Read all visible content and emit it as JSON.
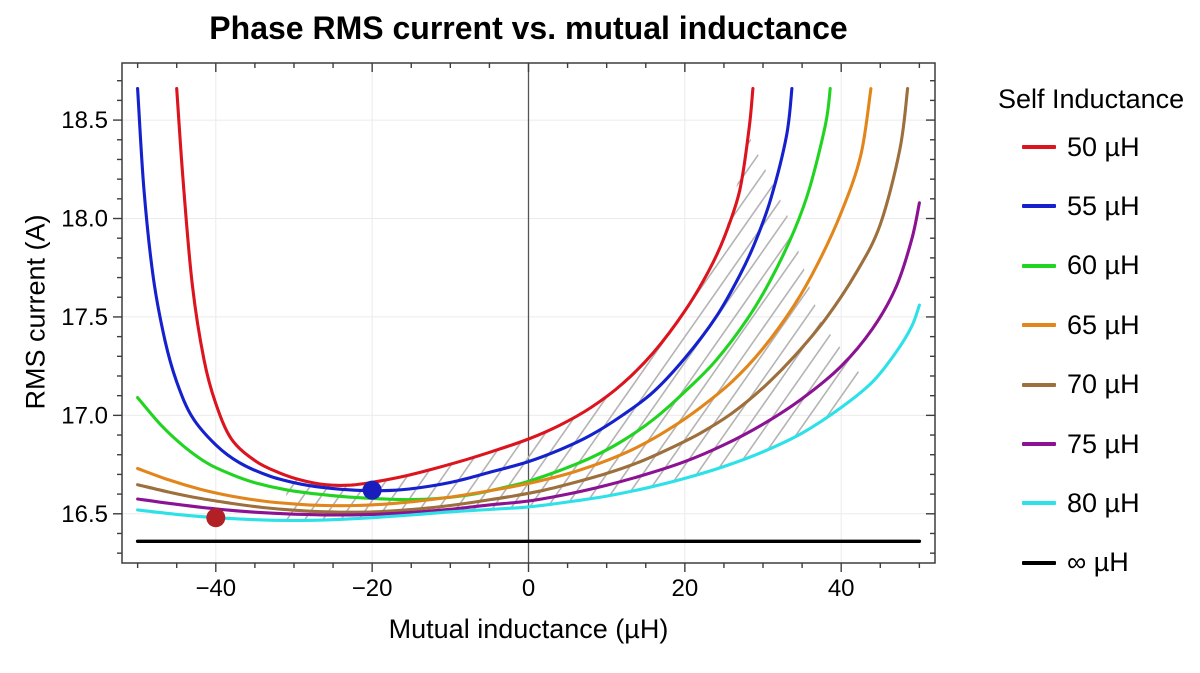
{
  "title": "Phase RMS current vs. mutual inductance",
  "chart_data": {
    "type": "line",
    "title": "Phase RMS current vs. mutual inductance",
    "xlabel": "Mutual inductance (µH)",
    "ylabel": "RMS current (A)",
    "xlim": [
      -52,
      52
    ],
    "ylim": [
      16.25,
      18.79
    ],
    "x_ticks": [
      -40,
      -20,
      0,
      20,
      40
    ],
    "y_ticks": [
      16.5,
      17.0,
      17.5,
      18.0,
      18.5
    ],
    "x_minor_step": 5,
    "y_minor_step": 0.1,
    "grid": true,
    "grid_color": "#ebebeb",
    "zero_axis_color": "#555555",
    "frame_color": "#3d3d3d",
    "legend_title": "Self Inductance",
    "legend_position": "right",
    "series": [
      {
        "name": "50 µH",
        "color": "#dc141e",
        "points": [
          [
            -45,
            18.66
          ],
          [
            -44.2,
            18.2
          ],
          [
            -43,
            17.66
          ],
          [
            -41.5,
            17.28
          ],
          [
            -40,
            17.06
          ],
          [
            -38,
            16.88
          ],
          [
            -35,
            16.77
          ],
          [
            -32,
            16.71
          ],
          [
            -29,
            16.67
          ],
          [
            -26,
            16.648
          ],
          [
            -23,
            16.645
          ],
          [
            -20,
            16.66
          ],
          [
            -16,
            16.69
          ],
          [
            -12,
            16.73
          ],
          [
            -8,
            16.775
          ],
          [
            -4,
            16.825
          ],
          [
            0,
            16.88
          ],
          [
            4,
            16.95
          ],
          [
            8,
            17.04
          ],
          [
            12,
            17.16
          ],
          [
            16,
            17.32
          ],
          [
            20,
            17.53
          ],
          [
            23,
            17.73
          ],
          [
            25,
            17.9
          ],
          [
            27,
            18.14
          ],
          [
            28.2,
            18.45
          ],
          [
            28.7,
            18.66
          ]
        ]
      },
      {
        "name": "55 µH",
        "color": "#1421cd",
        "points": [
          [
            -50,
            18.66
          ],
          [
            -49.2,
            18.15
          ],
          [
            -48,
            17.7
          ],
          [
            -46.5,
            17.38
          ],
          [
            -45,
            17.17
          ],
          [
            -43,
            16.99
          ],
          [
            -40,
            16.85
          ],
          [
            -37,
            16.76
          ],
          [
            -33,
            16.69
          ],
          [
            -29,
            16.65
          ],
          [
            -25,
            16.628
          ],
          [
            -21,
            16.618
          ],
          [
            -17,
            16.62
          ],
          [
            -13,
            16.638
          ],
          [
            -9,
            16.668
          ],
          [
            -5,
            16.71
          ],
          [
            0,
            16.765
          ],
          [
            4,
            16.825
          ],
          [
            8,
            16.9
          ],
          [
            12,
            17.0
          ],
          [
            16,
            17.12
          ],
          [
            20,
            17.29
          ],
          [
            24,
            17.5
          ],
          [
            27,
            17.71
          ],
          [
            29,
            17.88
          ],
          [
            31,
            18.1
          ],
          [
            33,
            18.42
          ],
          [
            33.7,
            18.66
          ]
        ]
      },
      {
        "name": "60 µH",
        "color": "#22d422",
        "points": [
          [
            -50,
            17.09
          ],
          [
            -47,
            16.95
          ],
          [
            -44,
            16.84
          ],
          [
            -41,
            16.755
          ],
          [
            -38,
            16.7
          ],
          [
            -35,
            16.658
          ],
          [
            -31,
            16.622
          ],
          [
            -27,
            16.6
          ],
          [
            -23,
            16.585
          ],
          [
            -19,
            16.576
          ],
          [
            -15,
            16.572
          ],
          [
            -11,
            16.58
          ],
          [
            -7,
            16.6
          ],
          [
            -3,
            16.635
          ],
          [
            0,
            16.665
          ],
          [
            4,
            16.72
          ],
          [
            8,
            16.785
          ],
          [
            12,
            16.87
          ],
          [
            16,
            16.98
          ],
          [
            20,
            17.12
          ],
          [
            24,
            17.28
          ],
          [
            28,
            17.49
          ],
          [
            31,
            17.69
          ],
          [
            34,
            17.94
          ],
          [
            36,
            18.16
          ],
          [
            38,
            18.48
          ],
          [
            38.6,
            18.66
          ]
        ]
      },
      {
        "name": "65 µH",
        "color": "#e2861b",
        "points": [
          [
            -50,
            16.73
          ],
          [
            -46,
            16.672
          ],
          [
            -42,
            16.625
          ],
          [
            -38,
            16.59
          ],
          [
            -34,
            16.565
          ],
          [
            -30,
            16.55
          ],
          [
            -26,
            16.542
          ],
          [
            -22,
            16.542
          ],
          [
            -18,
            16.55
          ],
          [
            -14,
            16.565
          ],
          [
            -10,
            16.585
          ],
          [
            -6,
            16.61
          ],
          [
            -2,
            16.638
          ],
          [
            2,
            16.672
          ],
          [
            6,
            16.715
          ],
          [
            10,
            16.77
          ],
          [
            14,
            16.84
          ],
          [
            18,
            16.93
          ],
          [
            22,
            17.04
          ],
          [
            26,
            17.17
          ],
          [
            30,
            17.34
          ],
          [
            34,
            17.56
          ],
          [
            37,
            17.77
          ],
          [
            40,
            18.03
          ],
          [
            42.5,
            18.32
          ],
          [
            43.8,
            18.66
          ]
        ]
      },
      {
        "name": "70 µH",
        "color": "#9c6f3c",
        "points": [
          [
            -50,
            16.648
          ],
          [
            -46,
            16.61
          ],
          [
            -42,
            16.578
          ],
          [
            -38,
            16.553
          ],
          [
            -34,
            16.532
          ],
          [
            -30,
            16.518
          ],
          [
            -26,
            16.51
          ],
          [
            -22,
            16.508
          ],
          [
            -18,
            16.513
          ],
          [
            -14,
            16.525
          ],
          [
            -10,
            16.542
          ],
          [
            -6,
            16.565
          ],
          [
            -2,
            16.59
          ],
          [
            2,
            16.62
          ],
          [
            6,
            16.66
          ],
          [
            10,
            16.705
          ],
          [
            14,
            16.76
          ],
          [
            18,
            16.83
          ],
          [
            22,
            16.91
          ],
          [
            26,
            17.01
          ],
          [
            30,
            17.14
          ],
          [
            34,
            17.3
          ],
          [
            38,
            17.49
          ],
          [
            42,
            17.73
          ],
          [
            45,
            17.97
          ],
          [
            47.5,
            18.35
          ],
          [
            48.5,
            18.66
          ]
        ]
      },
      {
        "name": "75 µH",
        "color": "#8b1292",
        "points": [
          [
            -50,
            16.575
          ],
          [
            -45,
            16.548
          ],
          [
            -40,
            16.525
          ],
          [
            -35,
            16.508
          ],
          [
            -30,
            16.498
          ],
          [
            -25,
            16.494
          ],
          [
            -20,
            16.497
          ],
          [
            -15,
            16.507
          ],
          [
            -10,
            16.523
          ],
          [
            -5,
            16.545
          ],
          [
            0,
            16.565
          ],
          [
            5,
            16.6
          ],
          [
            10,
            16.645
          ],
          [
            15,
            16.7
          ],
          [
            20,
            16.765
          ],
          [
            25,
            16.85
          ],
          [
            30,
            16.955
          ],
          [
            35,
            17.085
          ],
          [
            40,
            17.25
          ],
          [
            44,
            17.44
          ],
          [
            47,
            17.65
          ],
          [
            49,
            17.89
          ],
          [
            50,
            18.08
          ]
        ]
      },
      {
        "name": "80 µH",
        "color": "#2ce1e8",
        "points": [
          [
            -50,
            16.52
          ],
          [
            -45,
            16.497
          ],
          [
            -40,
            16.48
          ],
          [
            -35,
            16.47
          ],
          [
            -30,
            16.466
          ],
          [
            -25,
            16.47
          ],
          [
            -20,
            16.48
          ],
          [
            -15,
            16.494
          ],
          [
            -10,
            16.51
          ],
          [
            -5,
            16.522
          ],
          [
            0,
            16.535
          ],
          [
            5,
            16.56
          ],
          [
            10,
            16.59
          ],
          [
            15,
            16.63
          ],
          [
            20,
            16.68
          ],
          [
            25,
            16.74
          ],
          [
            30,
            16.815
          ],
          [
            35,
            16.91
          ],
          [
            40,
            17.04
          ],
          [
            44,
            17.17
          ],
          [
            47,
            17.32
          ],
          [
            49,
            17.45
          ],
          [
            50,
            17.56
          ]
        ]
      },
      {
        "name": "∞ µH",
        "color": "#000000",
        "points": [
          [
            -50,
            16.36
          ],
          [
            50,
            16.36
          ]
        ]
      }
    ],
    "markers": [
      {
        "name": "optimum-dot-50uH",
        "x": -40,
        "y": 16.48,
        "color": "#b02025",
        "radius": 9.5
      },
      {
        "name": "optimum-dot-55uH",
        "x": -20,
        "y": 16.62,
        "color": "#1a1dbe",
        "radius": 9.5
      }
    ],
    "hatch": {
      "color": "#b5b3b3",
      "x_start": -31,
      "upper_until": 26.5,
      "upper_clip": 18.45,
      "right_edge": [
        [
          28.2,
          18.42
        ],
        [
          33,
          18.03
        ],
        [
          37.3,
          17.48
        ],
        [
          43,
          17.18
        ]
      ]
    }
  }
}
